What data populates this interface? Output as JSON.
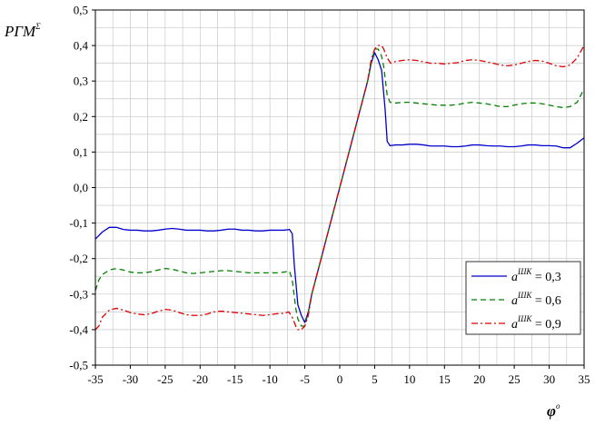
{
  "chart_data": {
    "type": "line",
    "ylabel": "PΓM",
    "ylabel_sup": "Σ",
    "xlabel": "φ",
    "xlabel_sup": "о",
    "xlim": [
      -35,
      35
    ],
    "ylim": [
      -0.5,
      0.5
    ],
    "x_ticks": [
      -35,
      -30,
      -25,
      -20,
      -15,
      -10,
      -5,
      0,
      5,
      10,
      15,
      20,
      25,
      30,
      35
    ],
    "x_tick_labels": [
      "-35",
      "-30",
      "-25",
      "-20",
      "-15",
      "-10",
      "-5",
      "0",
      "5",
      "10",
      "15",
      "20",
      "25",
      "30",
      "35"
    ],
    "y_ticks": [
      -0.5,
      -0.4,
      -0.3,
      -0.2,
      -0.1,
      0.0,
      0.1,
      0.2,
      0.3,
      0.4,
      0.5
    ],
    "y_tick_labels": [
      "-0,5",
      "-0,4",
      "-0,3",
      "-0,2",
      "-0,1",
      "0,0",
      "0,1",
      "0,2",
      "0,3",
      "0,4",
      "0,5"
    ],
    "grid": true,
    "legend_position": "bottom-right",
    "series": [
      {
        "name": "0,3",
        "legend_prefix": "a",
        "legend_sup": "ШК",
        "color": "#0000cc",
        "dash": "solid",
        "points": [
          [
            -35,
            -0.145
          ],
          [
            -34,
            -0.125
          ],
          [
            -33,
            -0.112
          ],
          [
            -32,
            -0.112
          ],
          [
            -31,
            -0.118
          ],
          [
            -30,
            -0.12
          ],
          [
            -29,
            -0.12
          ],
          [
            -28,
            -0.122
          ],
          [
            -27,
            -0.122
          ],
          [
            -26,
            -0.12
          ],
          [
            -25,
            -0.117
          ],
          [
            -24,
            -0.115
          ],
          [
            -23,
            -0.117
          ],
          [
            -22,
            -0.12
          ],
          [
            -21,
            -0.12
          ],
          [
            -20,
            -0.12
          ],
          [
            -19,
            -0.122
          ],
          [
            -18,
            -0.122
          ],
          [
            -17,
            -0.12
          ],
          [
            -16,
            -0.117
          ],
          [
            -15,
            -0.117
          ],
          [
            -14,
            -0.12
          ],
          [
            -13,
            -0.12
          ],
          [
            -12,
            -0.122
          ],
          [
            -11,
            -0.122
          ],
          [
            -10,
            -0.12
          ],
          [
            -9,
            -0.12
          ],
          [
            -8,
            -0.12
          ],
          [
            -7.2,
            -0.118
          ],
          [
            -6.8,
            -0.13
          ],
          [
            -6.5,
            -0.22
          ],
          [
            -6,
            -0.33
          ],
          [
            -5.5,
            -0.36
          ],
          [
            -5,
            -0.38
          ],
          [
            -4.5,
            -0.35
          ],
          [
            -4,
            -0.3
          ],
          [
            -2,
            -0.15
          ],
          [
            0,
            0.0
          ],
          [
            2,
            0.15
          ],
          [
            4,
            0.3
          ],
          [
            4.5,
            0.35
          ],
          [
            5,
            0.38
          ],
          [
            5.5,
            0.36
          ],
          [
            6,
            0.33
          ],
          [
            6.5,
            0.22
          ],
          [
            6.8,
            0.13
          ],
          [
            7.2,
            0.118
          ],
          [
            8,
            0.12
          ],
          [
            9,
            0.12
          ],
          [
            10,
            0.122
          ],
          [
            11,
            0.122
          ],
          [
            12,
            0.12
          ],
          [
            13,
            0.117
          ],
          [
            14,
            0.117
          ],
          [
            15,
            0.117
          ],
          [
            16,
            0.115
          ],
          [
            17,
            0.115
          ],
          [
            18,
            0.117
          ],
          [
            19,
            0.12
          ],
          [
            20,
            0.12
          ],
          [
            21,
            0.118
          ],
          [
            22,
            0.117
          ],
          [
            23,
            0.117
          ],
          [
            24,
            0.115
          ],
          [
            25,
            0.115
          ],
          [
            26,
            0.117
          ],
          [
            27,
            0.12
          ],
          [
            28,
            0.12
          ],
          [
            29,
            0.118
          ],
          [
            30,
            0.118
          ],
          [
            31,
            0.117
          ],
          [
            32,
            0.112
          ],
          [
            33,
            0.112
          ],
          [
            34,
            0.125
          ],
          [
            35,
            0.14
          ]
        ]
      },
      {
        "name": "0,6",
        "legend_prefix": "a",
        "legend_sup": "ШК",
        "color": "#008000",
        "dash": "6,4",
        "points": [
          [
            -35,
            -0.29
          ],
          [
            -34.5,
            -0.26
          ],
          [
            -34,
            -0.245
          ],
          [
            -33,
            -0.232
          ],
          [
            -32,
            -0.228
          ],
          [
            -31,
            -0.232
          ],
          [
            -30,
            -0.238
          ],
          [
            -29,
            -0.24
          ],
          [
            -28,
            -0.24
          ],
          [
            -27,
            -0.237
          ],
          [
            -26,
            -0.232
          ],
          [
            -25,
            -0.228
          ],
          [
            -24,
            -0.23
          ],
          [
            -23,
            -0.235
          ],
          [
            -22,
            -0.24
          ],
          [
            -21,
            -0.242
          ],
          [
            -20,
            -0.24
          ],
          [
            -19,
            -0.238
          ],
          [
            -18,
            -0.236
          ],
          [
            -17,
            -0.234
          ],
          [
            -16,
            -0.234
          ],
          [
            -15,
            -0.236
          ],
          [
            -14,
            -0.238
          ],
          [
            -13,
            -0.24
          ],
          [
            -12,
            -0.24
          ],
          [
            -11,
            -0.24
          ],
          [
            -10,
            -0.24
          ],
          [
            -9,
            -0.24
          ],
          [
            -8,
            -0.238
          ],
          [
            -7.2,
            -0.235
          ],
          [
            -6.8,
            -0.26
          ],
          [
            -6.3,
            -0.34
          ],
          [
            -6,
            -0.37
          ],
          [
            -5.5,
            -0.39
          ],
          [
            -5,
            -0.39
          ],
          [
            -4.5,
            -0.35
          ],
          [
            -4,
            -0.3
          ],
          [
            -2,
            -0.15
          ],
          [
            0,
            0.0
          ],
          [
            2,
            0.15
          ],
          [
            4,
            0.3
          ],
          [
            4.5,
            0.35
          ],
          [
            5,
            0.39
          ],
          [
            5.5,
            0.39
          ],
          [
            6,
            0.37
          ],
          [
            6.3,
            0.34
          ],
          [
            6.8,
            0.26
          ],
          [
            7.2,
            0.24
          ],
          [
            8,
            0.238
          ],
          [
            9,
            0.24
          ],
          [
            10,
            0.24
          ],
          [
            11,
            0.238
          ],
          [
            12,
            0.236
          ],
          [
            13,
            0.234
          ],
          [
            14,
            0.232
          ],
          [
            15,
            0.232
          ],
          [
            16,
            0.232
          ],
          [
            17,
            0.234
          ],
          [
            18,
            0.238
          ],
          [
            19,
            0.24
          ],
          [
            20,
            0.238
          ],
          [
            21,
            0.236
          ],
          [
            22,
            0.232
          ],
          [
            23,
            0.228
          ],
          [
            24,
            0.228
          ],
          [
            25,
            0.232
          ],
          [
            26,
            0.236
          ],
          [
            27,
            0.238
          ],
          [
            28,
            0.238
          ],
          [
            29,
            0.236
          ],
          [
            30,
            0.232
          ],
          [
            31,
            0.228
          ],
          [
            32,
            0.225
          ],
          [
            33,
            0.228
          ],
          [
            34,
            0.24
          ],
          [
            35,
            0.278
          ]
        ]
      },
      {
        "name": "0,9",
        "legend_prefix": "a",
        "legend_sup": "ШК",
        "color": "#dd0000",
        "dash": "7,3,2,3",
        "points": [
          [
            -35,
            -0.4
          ],
          [
            -34.5,
            -0.39
          ],
          [
            -34,
            -0.365
          ],
          [
            -33,
            -0.345
          ],
          [
            -32,
            -0.34
          ],
          [
            -31,
            -0.345
          ],
          [
            -30,
            -0.352
          ],
          [
            -29,
            -0.356
          ],
          [
            -28,
            -0.358
          ],
          [
            -27,
            -0.355
          ],
          [
            -26,
            -0.348
          ],
          [
            -25,
            -0.343
          ],
          [
            -24,
            -0.345
          ],
          [
            -23,
            -0.352
          ],
          [
            -22,
            -0.358
          ],
          [
            -21,
            -0.36
          ],
          [
            -20,
            -0.36
          ],
          [
            -19,
            -0.356
          ],
          [
            -18,
            -0.35
          ],
          [
            -17,
            -0.348
          ],
          [
            -16,
            -0.35
          ],
          [
            -15,
            -0.352
          ],
          [
            -14,
            -0.354
          ],
          [
            -13,
            -0.356
          ],
          [
            -12,
            -0.358
          ],
          [
            -11,
            -0.36
          ],
          [
            -10,
            -0.358
          ],
          [
            -9,
            -0.355
          ],
          [
            -8,
            -0.354
          ],
          [
            -7.3,
            -0.35
          ],
          [
            -6.8,
            -0.365
          ],
          [
            -6.3,
            -0.39
          ],
          [
            -6,
            -0.4
          ],
          [
            -5.5,
            -0.4
          ],
          [
            -5,
            -0.39
          ],
          [
            -4.5,
            -0.36
          ],
          [
            -4,
            -0.3
          ],
          [
            -2,
            -0.15
          ],
          [
            0,
            0.0
          ],
          [
            2,
            0.15
          ],
          [
            4,
            0.3
          ],
          [
            4.5,
            0.36
          ],
          [
            5,
            0.39
          ],
          [
            5.5,
            0.4
          ],
          [
            6,
            0.4
          ],
          [
            6.3,
            0.39
          ],
          [
            6.8,
            0.365
          ],
          [
            7.3,
            0.35
          ],
          [
            8,
            0.355
          ],
          [
            9,
            0.358
          ],
          [
            10,
            0.36
          ],
          [
            11,
            0.358
          ],
          [
            12,
            0.354
          ],
          [
            13,
            0.35
          ],
          [
            14,
            0.35
          ],
          [
            15,
            0.348
          ],
          [
            16,
            0.35
          ],
          [
            17,
            0.352
          ],
          [
            18,
            0.358
          ],
          [
            19,
            0.36
          ],
          [
            20,
            0.358
          ],
          [
            21,
            0.354
          ],
          [
            22,
            0.35
          ],
          [
            23,
            0.345
          ],
          [
            24,
            0.343
          ],
          [
            25,
            0.345
          ],
          [
            26,
            0.35
          ],
          [
            27,
            0.355
          ],
          [
            28,
            0.358
          ],
          [
            29,
            0.356
          ],
          [
            30,
            0.35
          ],
          [
            31,
            0.343
          ],
          [
            32,
            0.34
          ],
          [
            33,
            0.345
          ],
          [
            34,
            0.365
          ],
          [
            35,
            0.4
          ]
        ]
      }
    ]
  }
}
